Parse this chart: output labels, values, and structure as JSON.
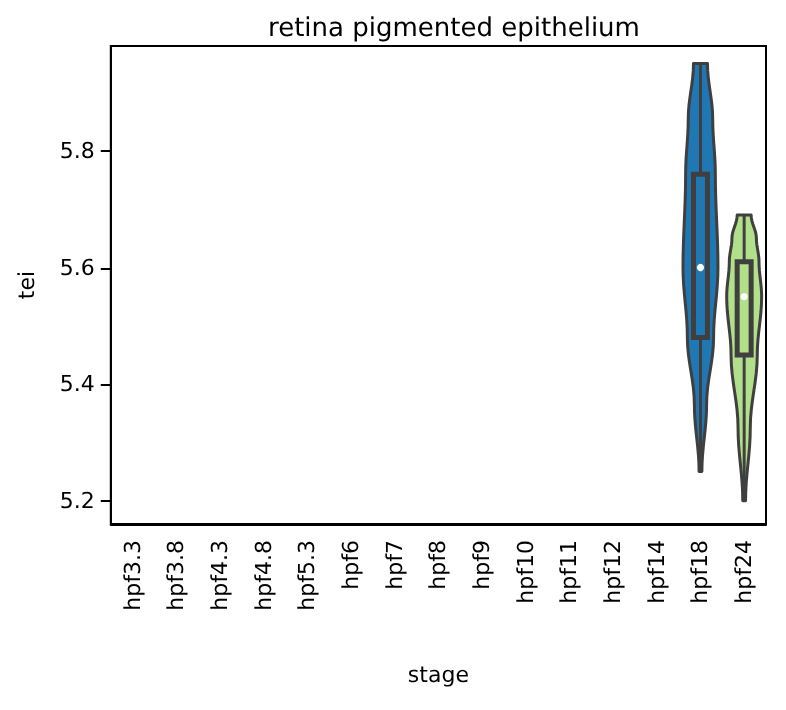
{
  "chart_data": {
    "type": "box",
    "title": "retina pigmented epithelium",
    "xlabel": "stage",
    "ylabel": "tei",
    "categories": [
      "hpf3.3",
      "hpf3.8",
      "hpf4.3",
      "hpf4.8",
      "hpf5.3",
      "hpf6",
      "hpf7",
      "hpf8",
      "hpf9",
      "hpf10",
      "hpf11",
      "hpf12",
      "hpf14",
      "hpf18",
      "hpf24"
    ],
    "boxes": [
      null,
      null,
      null,
      null,
      null,
      null,
      null,
      null,
      null,
      null,
      null,
      null,
      null,
      {
        "low": 5.25,
        "q1": 5.48,
        "median": 5.6,
        "q3": 5.76,
        "high": 5.95
      },
      {
        "low": 5.2,
        "q1": 5.45,
        "median": 5.55,
        "q3": 5.61,
        "high": 5.69
      }
    ],
    "colors": [
      null,
      null,
      null,
      null,
      null,
      null,
      null,
      null,
      null,
      null,
      null,
      null,
      null,
      "#1f78b4",
      "#b2df8a"
    ],
    "ylim": [
      5.16,
      5.98
    ],
    "yticks": [
      5.2,
      5.4,
      5.6,
      5.8
    ],
    "grid": false
  }
}
